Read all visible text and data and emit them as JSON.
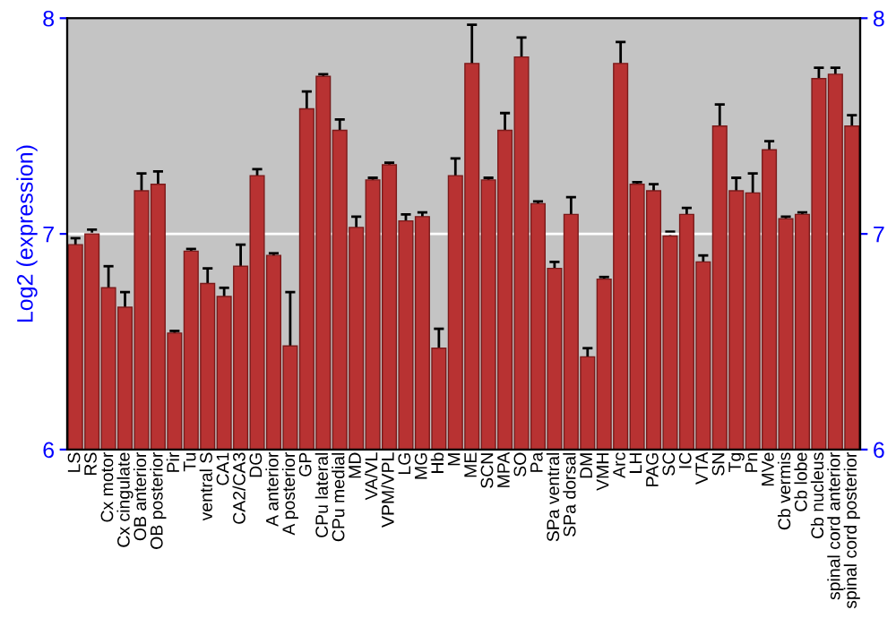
{
  "chart_data": {
    "type": "bar",
    "ylabel": "Log2 (expression)",
    "categories": [
      "LS",
      "RS",
      "Cx motor",
      "Cx cingulate",
      "OB anterior",
      "OB posterior",
      "Pir",
      "Tu",
      "ventral S",
      "CA1",
      "CA2/CA3",
      "DG",
      "A anterior",
      "A posterior",
      "GP",
      "CPu lateral",
      "CPu medial",
      "MD",
      "VA/VL",
      "VPM/VPL",
      "LG",
      "MG",
      "Hb",
      "M",
      "ME",
      "SCN",
      "MPA",
      "SO",
      "Pa",
      "SPa ventral",
      "SPa dorsal",
      "DM",
      "VMH",
      "Arc",
      "LH",
      "PAG",
      "SC",
      "IC",
      "VTA",
      "SN",
      "Tg",
      "Pn",
      "MVe",
      "Cb vermis",
      "Cb lobe",
      "Cb nucleus",
      "spinal cord anterior",
      "spinal cord posterior"
    ],
    "series": [
      {
        "color": "#b83232",
        "values": [
          6.95,
          7.0,
          6.75,
          6.66,
          7.2,
          7.23,
          6.54,
          6.92,
          6.77,
          6.71,
          6.85,
          7.27,
          6.9,
          6.48,
          7.58,
          7.73,
          7.48,
          7.03,
          7.25,
          7.32,
          7.06,
          7.08,
          6.47,
          7.27,
          7.79,
          7.25,
          7.48,
          7.82,
          7.14,
          6.84,
          7.09,
          6.43,
          6.79,
          7.79,
          7.23,
          7.2,
          6.99,
          7.09,
          6.87,
          7.5,
          7.2,
          7.19,
          7.39,
          7.07,
          7.09,
          7.72,
          7.74,
          7.5
        ],
        "errors": [
          0.03,
          0.02,
          0.1,
          0.07,
          0.08,
          0.06,
          0.01,
          0.01,
          0.07,
          0.04,
          0.1,
          0.03,
          0.01,
          0.25,
          0.08,
          0.01,
          0.05,
          0.05,
          0.01,
          0.01,
          0.03,
          0.02,
          0.09,
          0.08,
          0.18,
          0.01,
          0.08,
          0.09,
          0.01,
          0.03,
          0.08,
          0.04,
          0.01,
          0.1,
          0.01,
          0.03,
          0.02,
          0.03,
          0.03,
          0.1,
          0.06,
          0.09,
          0.04,
          0.01,
          0.01,
          0.05,
          0.03,
          0.05
        ]
      }
    ],
    "ylim": [
      6,
      8
    ],
    "yticks": [
      6,
      7,
      8
    ],
    "y2lim": [
      6,
      8
    ],
    "y2ticks": [
      6,
      7,
      8
    ],
    "grid": "y"
  }
}
